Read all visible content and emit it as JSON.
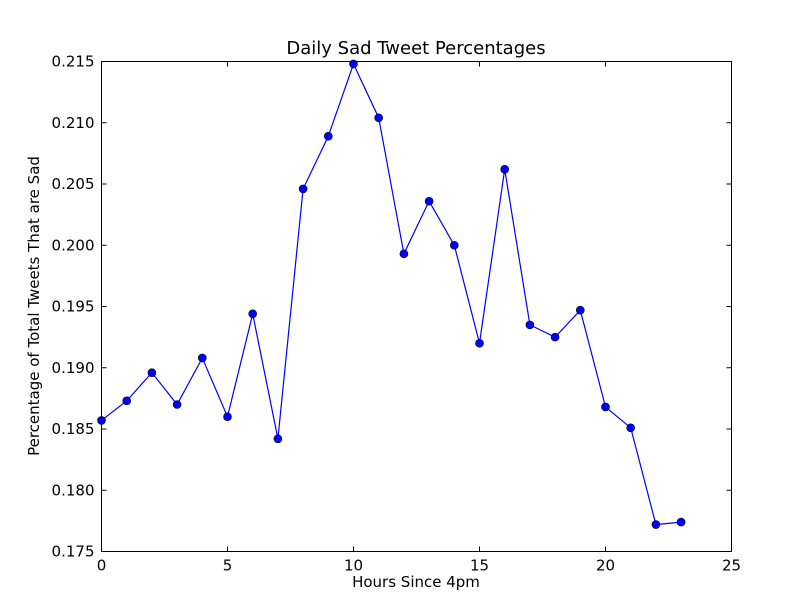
{
  "chart_data": {
    "type": "line",
    "title": "Daily Sad Tweet Percentages",
    "xlabel": "Hours Since 4pm",
    "ylabel": "Percentage of Total Tweets That are Sad",
    "xlim": [
      0,
      25
    ],
    "ylim": [
      0.175,
      0.215
    ],
    "xticks": [
      0,
      5,
      10,
      15,
      20,
      25
    ],
    "yticks": [
      0.175,
      0.18,
      0.185,
      0.19,
      0.195,
      0.2,
      0.205,
      0.21,
      0.215
    ],
    "grid": false,
    "legend": "none",
    "line_color": "#0000ff",
    "marker_color": "#0000ff",
    "series": [
      {
        "x": [
          0,
          1,
          2,
          3,
          4,
          5,
          6,
          7,
          8,
          9,
          10,
          11,
          12,
          13,
          14,
          15,
          16,
          17,
          18,
          19,
          20,
          21,
          22,
          23
        ],
        "values": [
          0.1857,
          0.1873,
          0.1896,
          0.187,
          0.1908,
          0.186,
          0.1944,
          0.1842,
          0.2046,
          0.2089,
          0.2148,
          0.2104,
          0.1993,
          0.2036,
          0.2,
          0.192,
          0.2062,
          0.1935,
          0.1925,
          0.1947,
          0.1868,
          0.1851,
          0.1772,
          0.1774
        ]
      }
    ]
  }
}
